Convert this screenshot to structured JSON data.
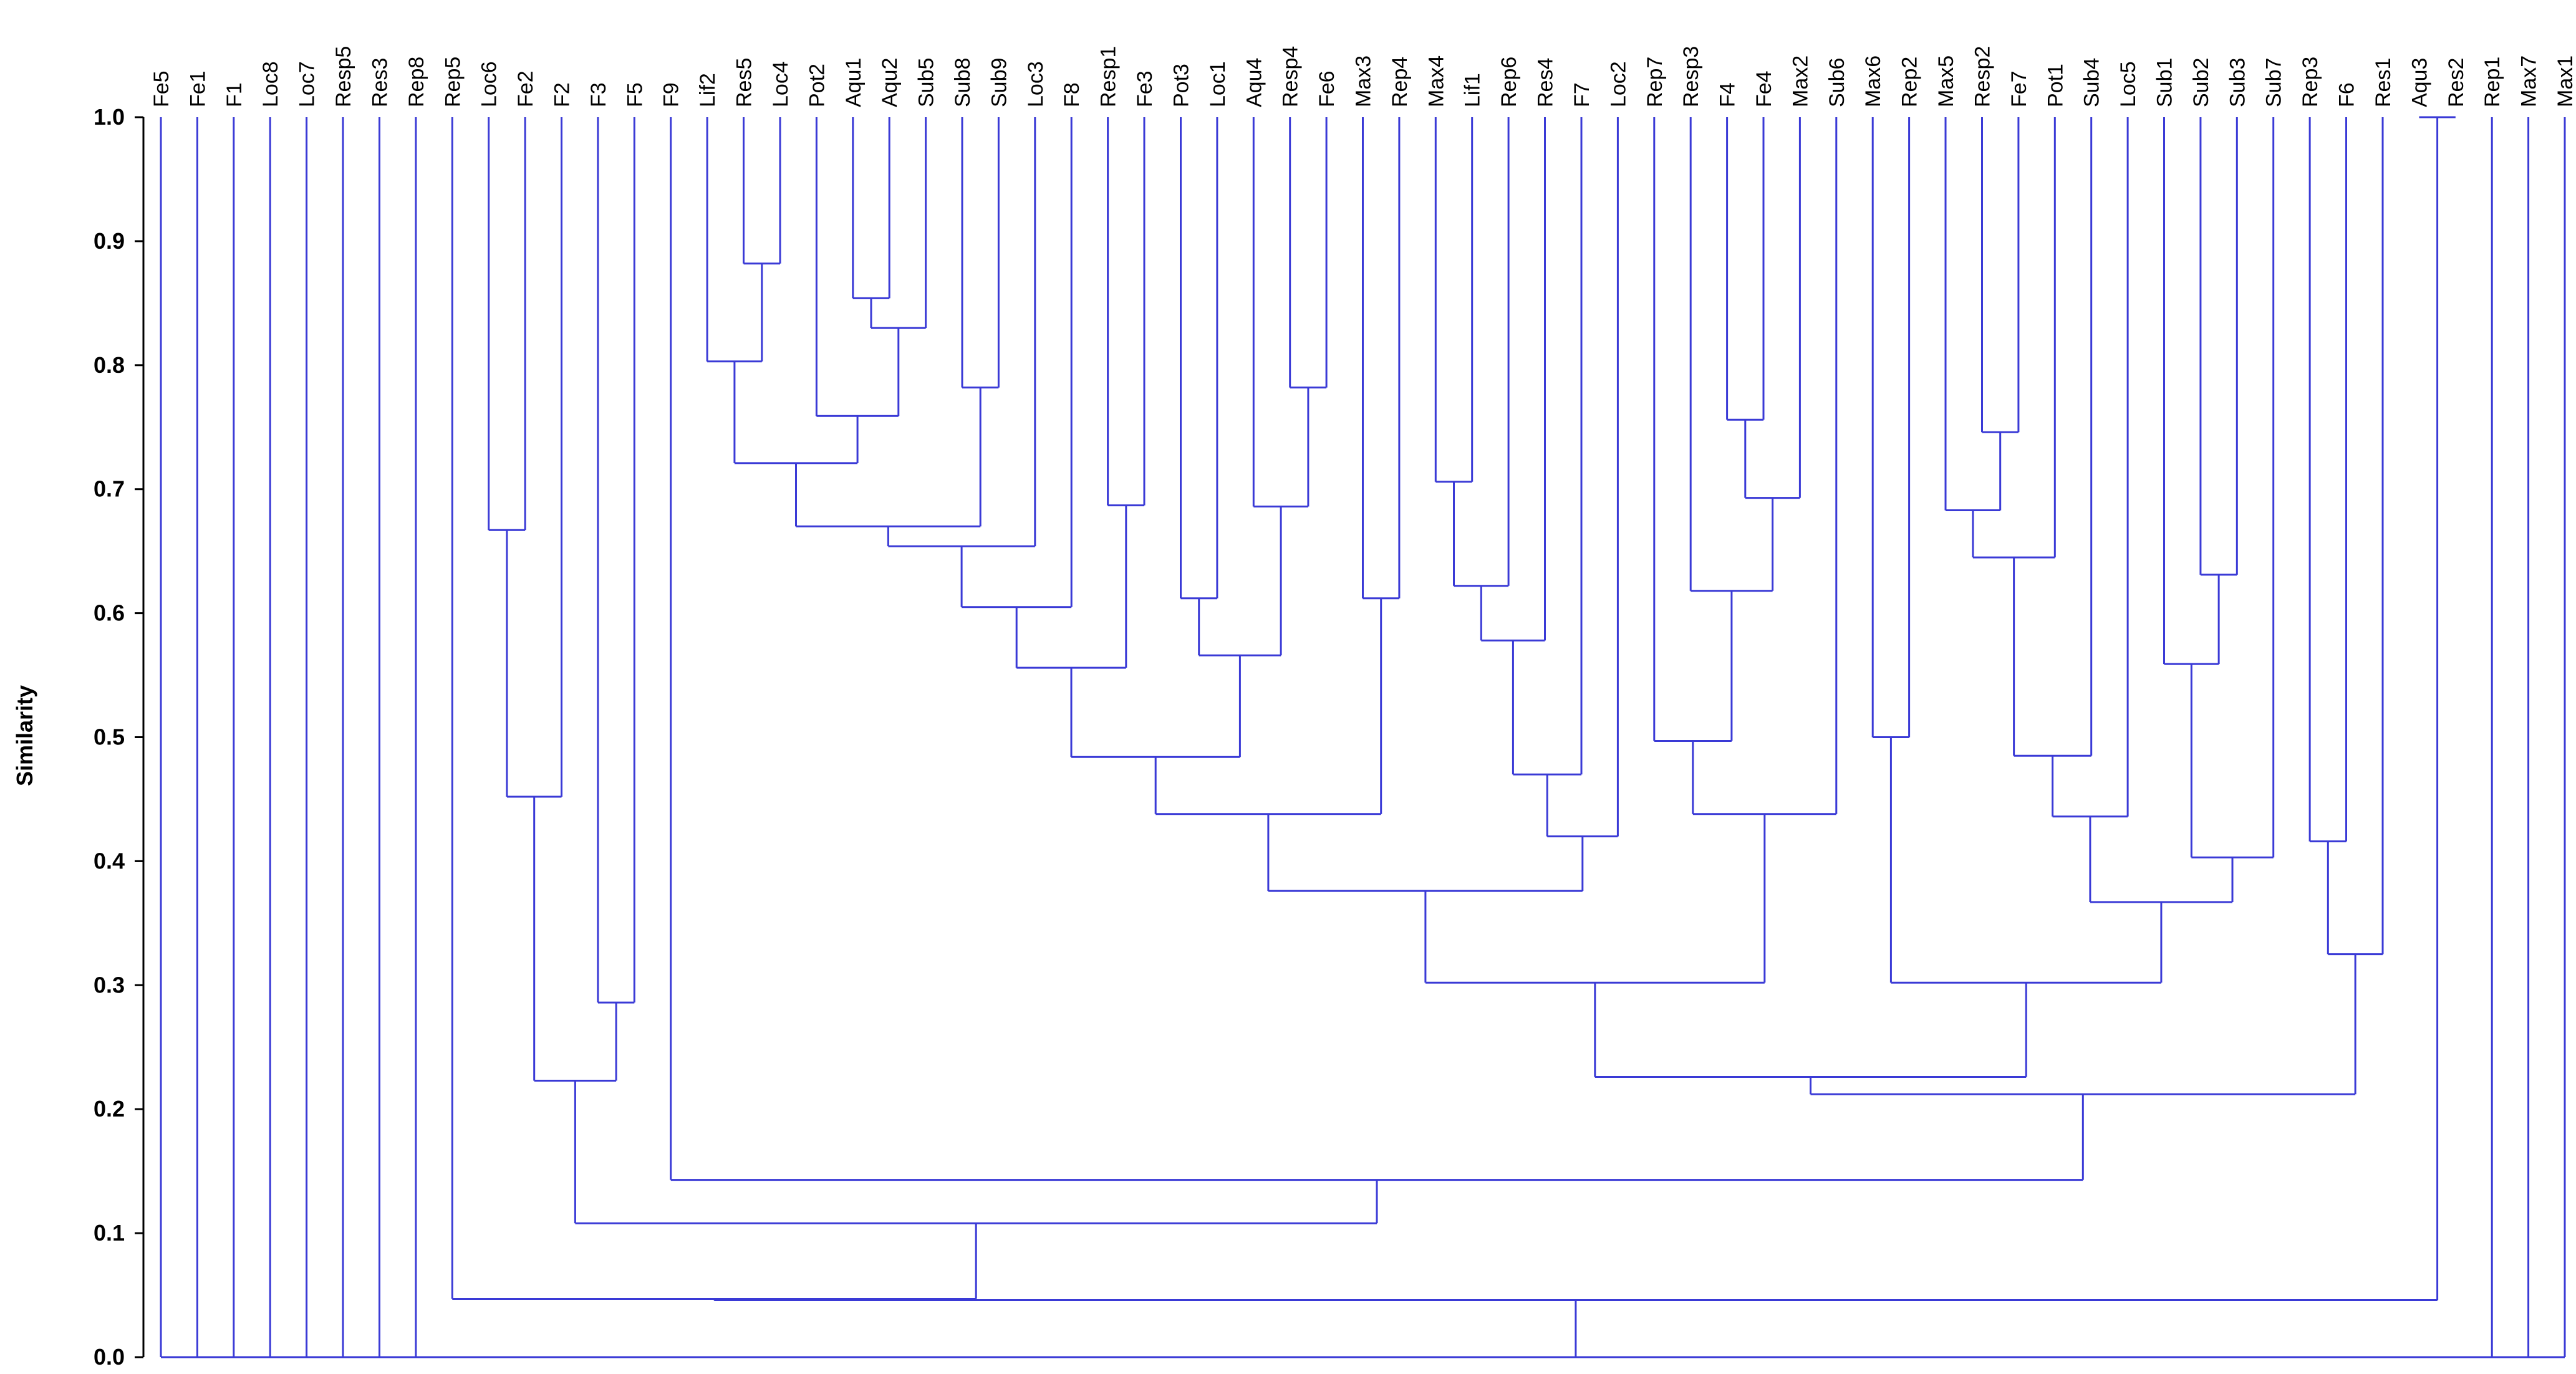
{
  "chart_data": {
    "type": "dendrogram",
    "ylabel": "Similarity",
    "ylim": [
      0,
      1
    ],
    "yticks": [
      "0.0",
      "0.1",
      "0.2",
      "0.3",
      "0.4",
      "0.5",
      "0.6",
      "0.7",
      "0.8",
      "0.9",
      "1.0"
    ],
    "leaves": [
      "Fe5",
      "Fe1",
      "F1",
      "Loc8",
      "Loc7",
      "Resp5",
      "Res3",
      "Rep8",
      "Rep5",
      "Loc6",
      "Fe2",
      "F2",
      "F3",
      "F5",
      "F9",
      "Lif2",
      "Res5",
      "Loc4",
      "Pot2",
      "Aqu1",
      "Aqu2",
      "Sub5",
      "Sub8",
      "Sub9",
      "Loc3",
      "F8",
      "Resp1",
      "Fe3",
      "Pot3",
      "Loc1",
      "Aqu4",
      "Resp4",
      "Fe6",
      "Max3",
      "Rep4",
      "Max4",
      "Lif1",
      "Rep6",
      "Res4",
      "F7",
      "Loc2",
      "Rep7",
      "Resp3",
      "F4",
      "Fe4",
      "Max2",
      "Sub6",
      "Max6",
      "Rep2",
      "Max5",
      "Resp2",
      "Fe7",
      "Pot1",
      "Sub4",
      "Loc5",
      "Sub1",
      "Sub2",
      "Sub3",
      "Sub7",
      "Rep3",
      "F6",
      "Res1",
      "Aqu3",
      "Res2",
      "Rep1",
      "Max7",
      "Max1"
    ],
    "merges": [
      {
        "a": "Res5",
        "b": "Loc4",
        "sim": 0.882
      },
      {
        "a": "Lif2",
        "b": "C1",
        "sim": 0.803
      },
      {
        "a": "Aqu1",
        "b": "Aqu2",
        "sim": 0.854
      },
      {
        "a": "C3",
        "b": "Sub5",
        "sim": 0.83
      },
      {
        "a": "Pot2",
        "b": "C4",
        "sim": 0.759
      },
      {
        "a": "C2",
        "b": "C5",
        "sim": 0.721
      },
      {
        "a": "Sub8",
        "b": "Sub9",
        "sim": 0.782
      },
      {
        "a": "C6",
        "b": "C7",
        "sim": 0.67
      },
      {
        "a": "C8",
        "b": "Loc3",
        "sim": 0.654
      },
      {
        "a": "C9",
        "b": "F8",
        "sim": 0.605
      },
      {
        "a": "Resp1",
        "b": "Fe3",
        "sim": 0.687
      },
      {
        "a": "C10",
        "b": "C11",
        "sim": 0.556
      },
      {
        "a": "Pot3",
        "b": "Loc1",
        "sim": 0.612
      },
      {
        "a": "Resp4",
        "b": "Fe6",
        "sim": 0.782
      },
      {
        "a": "Aqu4",
        "b": "C14",
        "sim": 0.686
      },
      {
        "a": "C13",
        "b": "C15",
        "sim": 0.566
      },
      {
        "a": "C12",
        "b": "C16",
        "sim": 0.484
      },
      {
        "a": "Max3",
        "b": "Rep4",
        "sim": 0.612
      },
      {
        "a": "C17",
        "b": "C18",
        "sim": 0.438
      },
      {
        "a": "Max4",
        "b": "Lif1",
        "sim": 0.706
      },
      {
        "a": "C20",
        "b": "Rep6",
        "sim": 0.622
      },
      {
        "a": "C21",
        "b": "Res4",
        "sim": 0.578
      },
      {
        "a": "C22",
        "b": "F7",
        "sim": 0.47
      },
      {
        "a": "C23",
        "b": "Loc2",
        "sim": 0.42
      },
      {
        "a": "C19",
        "b": "C24",
        "sim": 0.376
      },
      {
        "a": "F4",
        "b": "Fe4",
        "sim": 0.756
      },
      {
        "a": "C26",
        "b": "Max2",
        "sim": 0.693
      },
      {
        "a": "Resp3",
        "b": "C27",
        "sim": 0.618
      },
      {
        "a": "Rep7",
        "b": "C28",
        "sim": 0.497
      },
      {
        "a": "C29",
        "b": "Sub6",
        "sim": 0.438
      },
      {
        "a": "C25",
        "b": "C30",
        "sim": 0.302
      },
      {
        "a": "Max6",
        "b": "Rep2",
        "sim": 0.5
      },
      {
        "a": "Resp2",
        "b": "Fe7",
        "sim": 0.746
      },
      {
        "a": "Max5",
        "b": "C33",
        "sim": 0.683
      },
      {
        "a": "C34",
        "b": "Pot1",
        "sim": 0.645
      },
      {
        "a": "C35",
        "b": "Sub4",
        "sim": 0.485
      },
      {
        "a": "C36",
        "b": "Loc5",
        "sim": 0.436
      },
      {
        "a": "Sub2",
        "b": "Sub3",
        "sim": 0.631
      },
      {
        "a": "Sub1",
        "b": "C38",
        "sim": 0.559
      },
      {
        "a": "C39",
        "b": "Sub7",
        "sim": 0.403
      },
      {
        "a": "C37",
        "b": "C40",
        "sim": 0.367
      },
      {
        "a": "C32",
        "b": "C41",
        "sim": 0.302
      },
      {
        "a": "C31",
        "b": "C42",
        "sim": 0.226
      },
      {
        "a": "Rep3",
        "b": "F6",
        "sim": 0.416
      },
      {
        "a": "C44",
        "b": "Res1",
        "sim": 0.325
      },
      {
        "a": "C43",
        "b": "C45",
        "sim": 0.212
      },
      {
        "a": "F9",
        "b": "C46",
        "sim": 0.143
      },
      {
        "a": "Loc6",
        "b": "Fe2",
        "sim": 0.667
      },
      {
        "a": "C48",
        "b": "F2",
        "sim": 0.452
      },
      {
        "a": "F3",
        "b": "F5",
        "sim": 0.286
      },
      {
        "a": "C49",
        "b": "C50",
        "sim": 0.223
      },
      {
        "a": "C51",
        "b": "C47",
        "sim": 0.108
      },
      {
        "a": "Aqu3",
        "b": "Res2",
        "sim": 1.0
      },
      {
        "a": "Rep5",
        "b": "C52",
        "sim": 0.047
      },
      {
        "a": "C54",
        "b": "C53",
        "sim": 0.046
      },
      {
        "a": "Fe5",
        "b": "Fe1",
        "sim": 0.0
      },
      {
        "a": "C56",
        "b": "F1",
        "sim": 0.0
      },
      {
        "a": "C57",
        "b": "Loc8",
        "sim": 0.0
      },
      {
        "a": "C58",
        "b": "Loc7",
        "sim": 0.0
      },
      {
        "a": "C59",
        "b": "Resp5",
        "sim": 0.0
      },
      {
        "a": "C60",
        "b": "Res3",
        "sim": 0.0
      },
      {
        "a": "C61",
        "b": "Rep8",
        "sim": 0.0
      },
      {
        "a": "C62",
        "b": "C55",
        "sim": 0.0
      },
      {
        "a": "C63",
        "b": "Rep1",
        "sim": 0.0
      },
      {
        "a": "C64",
        "b": "Max7",
        "sim": 0.0
      },
      {
        "a": "C65",
        "b": "Max1",
        "sim": 0.0
      }
    ],
    "colors": {
      "link": "#3a3ad6",
      "axis": "#000000",
      "text": "#000000"
    }
  }
}
